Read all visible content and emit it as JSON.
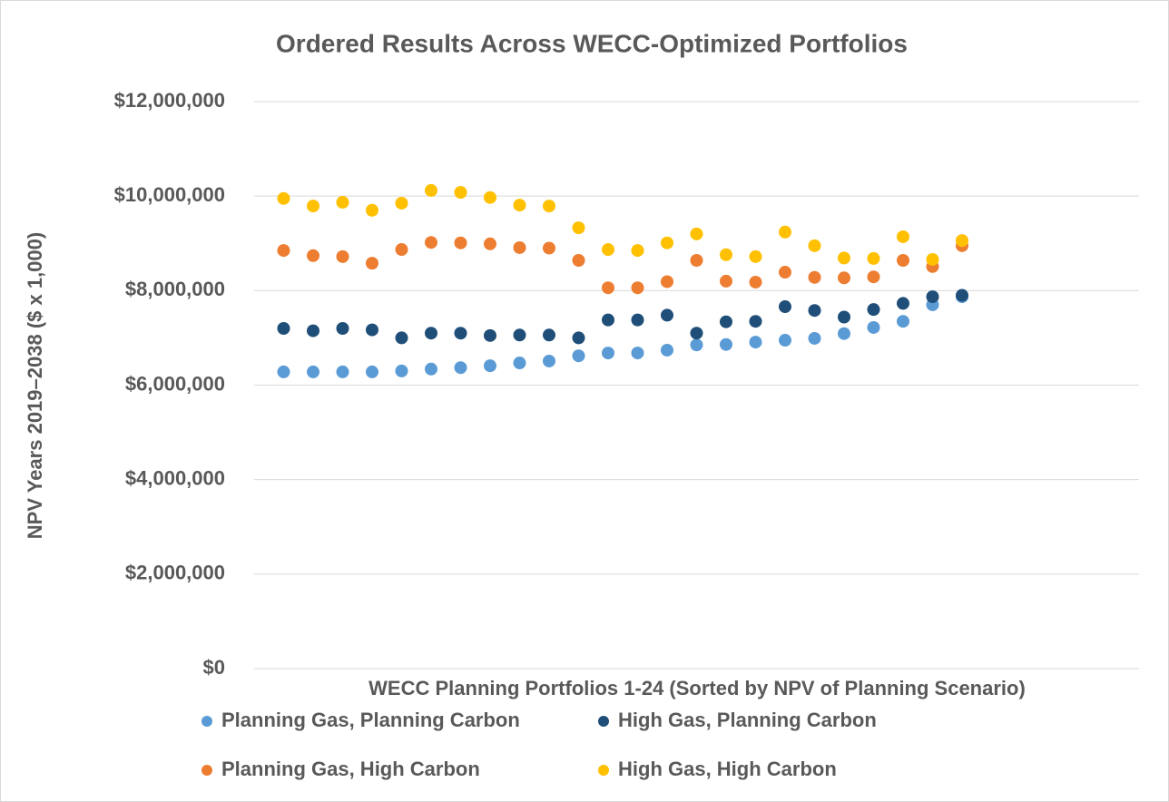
{
  "chart_data": {
    "type": "scatter",
    "title": "Ordered Results Across WECC-Optimized Portfolios",
    "x_label": "WECC Planning Portfolios 1-24 (Sorted by NPV of Planning Scenario)",
    "y_label": "NPV Years 2019–2038 ($ x 1,000)",
    "x": [
      1,
      2,
      3,
      4,
      5,
      6,
      7,
      8,
      9,
      10,
      11,
      12,
      13,
      14,
      15,
      16,
      17,
      18,
      19,
      20,
      21,
      22,
      23,
      24
    ],
    "xlim": [
      0,
      30
    ],
    "ylim": [
      0,
      12000000
    ],
    "yticks": [
      {
        "value": 0,
        "label": "$0"
      },
      {
        "value": 2000000,
        "label": "$2,000,000"
      },
      {
        "value": 4000000,
        "label": "$4,000,000"
      },
      {
        "value": 6000000,
        "label": "$6,000,000"
      },
      {
        "value": 8000000,
        "label": "$8,000,000"
      },
      {
        "value": 10000000,
        "label": "$10,000,000"
      },
      {
        "value": 12000000,
        "label": "$12,000,000"
      }
    ],
    "grid": true,
    "legend": "bottom",
    "series": [
      {
        "name": "Planning Gas, Planning Carbon",
        "color": "#5b9bd5",
        "values": [
          6280000,
          6280000,
          6280000,
          6280000,
          6300000,
          6340000,
          6370000,
          6410000,
          6470000,
          6510000,
          6620000,
          6680000,
          6680000,
          6740000,
          6850000,
          6860000,
          6910000,
          6950000,
          6990000,
          7090000,
          7220000,
          7350000,
          7700000,
          7870000
        ]
      },
      {
        "name": "High Gas, Planning Carbon",
        "color": "#1f4e79",
        "values": [
          7200000,
          7150000,
          7200000,
          7170000,
          7000000,
          7100000,
          7100000,
          7050000,
          7060000,
          7060000,
          7000000,
          7380000,
          7380000,
          7480000,
          7100000,
          7340000,
          7350000,
          7660000,
          7580000,
          7440000,
          7600000,
          7730000,
          7870000,
          7900000
        ]
      },
      {
        "name": "Planning Gas, High Carbon",
        "color": "#ed7d31",
        "values": [
          8850000,
          8740000,
          8720000,
          8580000,
          8870000,
          9020000,
          9010000,
          8990000,
          8910000,
          8900000,
          8640000,
          8060000,
          8060000,
          8190000,
          8640000,
          8200000,
          8180000,
          8390000,
          8280000,
          8270000,
          8290000,
          8640000,
          8510000,
          8950000
        ]
      },
      {
        "name": "High Gas, High Carbon",
        "color": "#ffc000",
        "values": [
          9950000,
          9790000,
          9870000,
          9700000,
          9850000,
          10120000,
          10080000,
          9970000,
          9810000,
          9790000,
          9330000,
          8870000,
          8850000,
          9010000,
          9200000,
          8760000,
          8720000,
          9240000,
          8950000,
          8690000,
          8680000,
          9140000,
          8660000,
          9060000
        ]
      }
    ]
  }
}
